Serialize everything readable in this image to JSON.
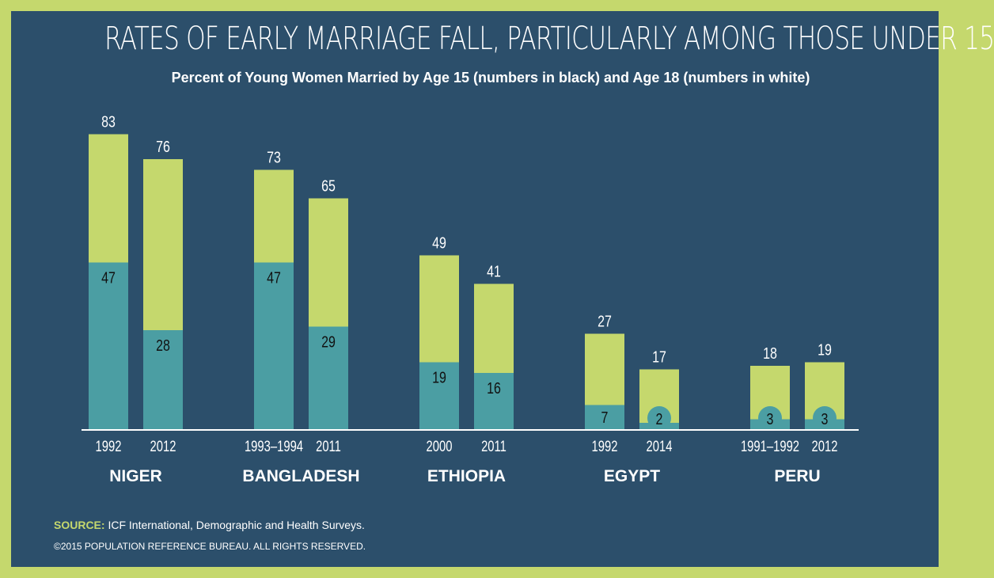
{
  "title": "RATES OF EARLY MARRIAGE FALL, PARTICULARLY AMONG THOSE UNDER 15",
  "subtitle": "Percent of Young Women Married by Age 15 (numbers in black) and Age 18 (numbers in white)",
  "source_label": "SOURCE:",
  "source_text": "ICF International, Demographic and Health Surveys.",
  "copyright": "©2015 POPULATION REFERENCE BUREAU. ALL RIGHTS RESERVED.",
  "colors": {
    "background": "#2c4f6b",
    "border": "#c5d86d",
    "age18_bar": "#c5d86d",
    "age15_bar": "#4b9ea3"
  },
  "chart_data": {
    "type": "bar",
    "stacked": false,
    "overlapping": true,
    "grid": false,
    "ylim": [
      0,
      90
    ],
    "groups": [
      {
        "country": "NIGER",
        "bars": [
          {
            "year": "1992",
            "age15": 47,
            "age18": 83
          },
          {
            "year": "2012",
            "age15": 28,
            "age18": 76
          }
        ]
      },
      {
        "country": "BANGLADESH",
        "bars": [
          {
            "year": "1993–1994",
            "age15": 47,
            "age18": 73
          },
          {
            "year": "2011",
            "age15": 29,
            "age18": 65
          }
        ]
      },
      {
        "country": "ETHIOPIA",
        "bars": [
          {
            "year": "2000",
            "age15": 19,
            "age18": 49
          },
          {
            "year": "2011",
            "age15": 16,
            "age18": 41
          }
        ]
      },
      {
        "country": "EGYPT",
        "bars": [
          {
            "year": "1992",
            "age15": 7,
            "age18": 27
          },
          {
            "year": "2014",
            "age15": 2,
            "age18": 17
          }
        ]
      },
      {
        "country": "PERU",
        "bars": [
          {
            "year": "1991–1992",
            "age15": 3,
            "age18": 18
          },
          {
            "year": "2012",
            "age15": 3,
            "age18": 19
          }
        ]
      }
    ]
  }
}
